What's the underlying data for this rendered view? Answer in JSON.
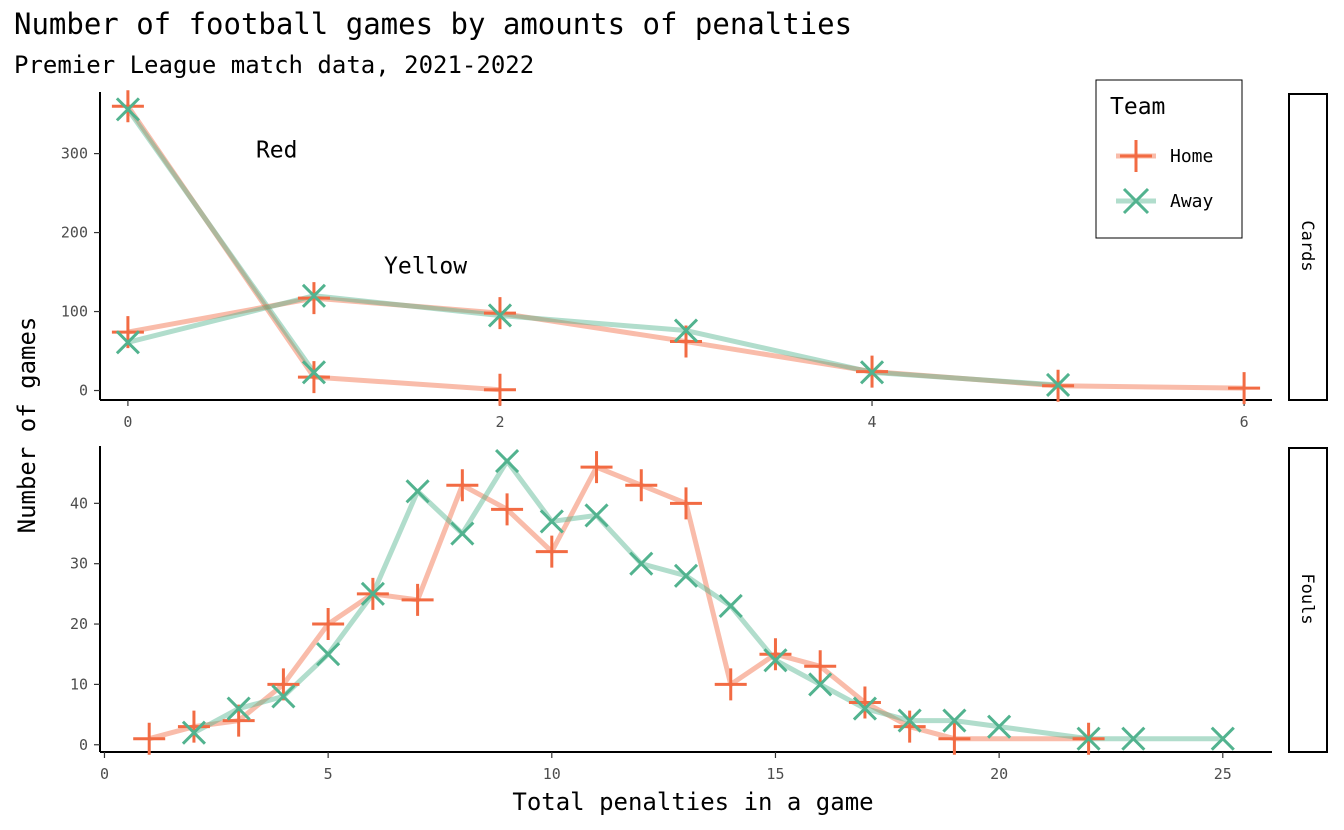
{
  "title": "Number of football games by amounts of penalties",
  "subtitle": "Premier League match data, 2021-2022",
  "xlabel": "Total penalties in a game",
  "ylabel": "Number of games",
  "legend": {
    "title": "Team",
    "items": [
      {
        "label": "Home",
        "color": "#F26B43",
        "marker": "plus"
      },
      {
        "label": "Away",
        "color": "#52B38F",
        "marker": "cross"
      }
    ],
    "placement": "top-right"
  },
  "colors": {
    "home": "#F26B43",
    "away": "#52B38F"
  },
  "chart_data": [
    {
      "type": "line",
      "facet": "Cards",
      "xlim": [
        -0.15,
        6.15
      ],
      "ylim": [
        -12,
        378
      ],
      "xticks": [
        0,
        2,
        4,
        6
      ],
      "yticks": [
        0,
        100,
        200,
        300
      ],
      "annotations": [
        {
          "text": "Red",
          "x": 0.8,
          "y": 295
        },
        {
          "text": "Yellow",
          "x": 1.6,
          "y": 148
        }
      ],
      "series": [
        {
          "name": "Home",
          "group": "Red",
          "x": [
            0,
            1,
            2
          ],
          "y": [
            360,
            17,
            1
          ]
        },
        {
          "name": "Away",
          "group": "Red",
          "x": [
            0,
            1
          ],
          "y": [
            356,
            23
          ]
        },
        {
          "name": "Home",
          "group": "Yellow",
          "x": [
            0,
            1,
            2,
            3,
            4,
            5,
            6
          ],
          "y": [
            74,
            117,
            98,
            62,
            24,
            6,
            3
          ]
        },
        {
          "name": "Away",
          "group": "Yellow",
          "x": [
            0,
            1,
            2,
            3,
            4,
            5
          ],
          "y": [
            61,
            120,
            95,
            76,
            23,
            7
          ]
        }
      ]
    },
    {
      "type": "line",
      "facet": "Fouls",
      "xlim": [
        -0.1,
        26.1
      ],
      "ylim": [
        -1.2,
        49.5
      ],
      "xticks": [
        0,
        5,
        10,
        15,
        20,
        25
      ],
      "yticks": [
        0,
        10,
        20,
        30,
        40
      ],
      "series": [
        {
          "name": "Home",
          "x": [
            1,
            2,
            3,
            4,
            5,
            6,
            7,
            8,
            9,
            10,
            11,
            12,
            13,
            14,
            15,
            16,
            17,
            18,
            19,
            22
          ],
          "y": [
            1,
            3,
            4,
            10,
            20,
            25,
            24,
            43,
            39,
            32,
            46,
            43,
            40,
            10,
            15,
            13,
            7,
            3,
            1,
            1
          ]
        },
        {
          "name": "Away",
          "x": [
            2,
            3,
            4,
            5,
            6,
            7,
            8,
            9,
            10,
            11,
            12,
            13,
            14,
            15,
            16,
            17,
            18,
            19,
            20,
            22,
            23,
            25
          ],
          "y": [
            2,
            6,
            8,
            15,
            25,
            42,
            35,
            47,
            37,
            38,
            30,
            28,
            23,
            14,
            10,
            6,
            4,
            4,
            3,
            1,
            1,
            1
          ]
        }
      ]
    }
  ]
}
